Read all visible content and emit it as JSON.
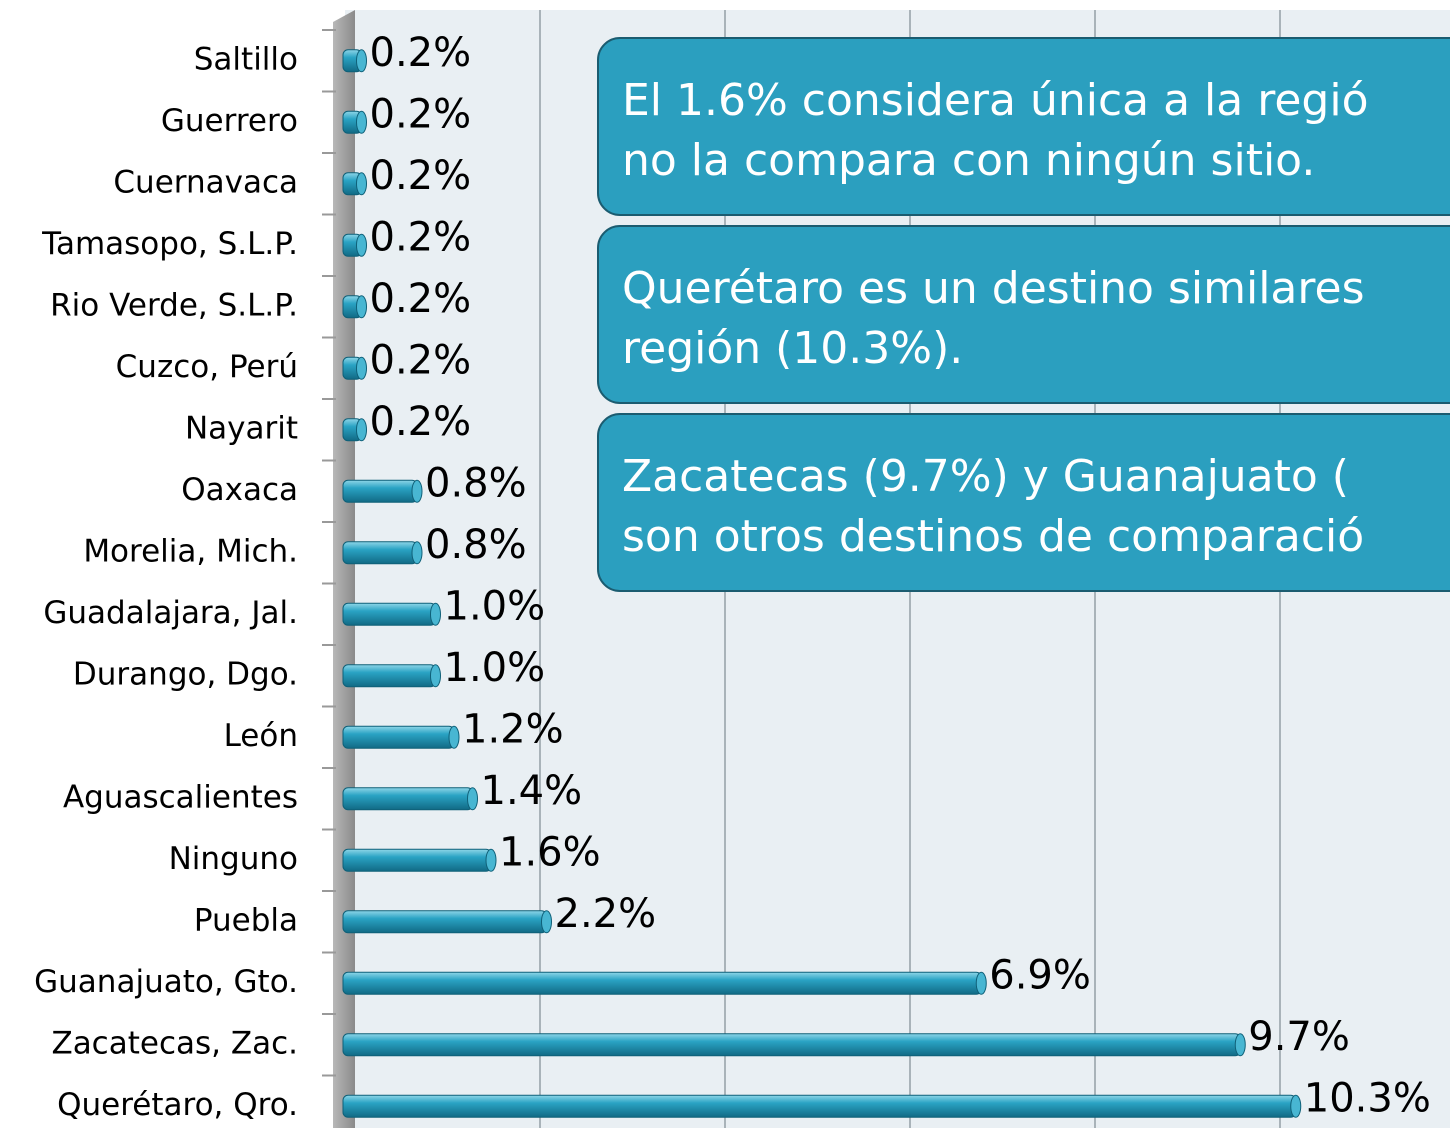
{
  "chart_data": {
    "type": "bar",
    "orientation": "horizontal",
    "categories": [
      "Saltillo",
      "Guerrero",
      "Cuernavaca",
      "Tamasopo, S.L.P.",
      "Rio Verde, S.L.P.",
      "Cuzco, Perú",
      "Nayarit",
      "Oaxaca",
      "Morelia, Mich.",
      "Guadalajara, Jal.",
      "Durango, Dgo.",
      "León",
      "Aguascalientes",
      "Ninguno",
      "Puebla",
      "Guanajuato, Gto.",
      "Zacatecas, Zac.",
      "Querétaro, Qro."
    ],
    "values": [
      0.2,
      0.2,
      0.2,
      0.2,
      0.2,
      0.2,
      0.2,
      0.8,
      0.8,
      1.0,
      1.0,
      1.2,
      1.4,
      1.6,
      2.2,
      6.9,
      9.7,
      10.3
    ],
    "value_labels": [
      "0.2%",
      "0.2%",
      "0.2%",
      "0.2%",
      "0.2%",
      "0.2%",
      "0.2%",
      "0.8%",
      "0.8%",
      "1.0%",
      "1.0%",
      "1.2%",
      "1.4%",
      "1.6%",
      "2.2%",
      "6.9%",
      "9.7%",
      "10.3%"
    ],
    "color": "#2aa3c4",
    "xlim": [
      0,
      12
    ],
    "xticks": [
      0,
      2,
      4,
      6,
      8,
      10,
      12
    ],
    "grid": true,
    "annotations": [
      [
        "El 1.6% considera única a la regió",
        "no la compara con ningún sitio."
      ],
      [
        "Querétaro es un destino similares",
        "región (10.3%)."
      ],
      [
        "Zacatecas (9.7%) y Guanajuato (",
        "son otros destinos de comparació"
      ]
    ]
  }
}
